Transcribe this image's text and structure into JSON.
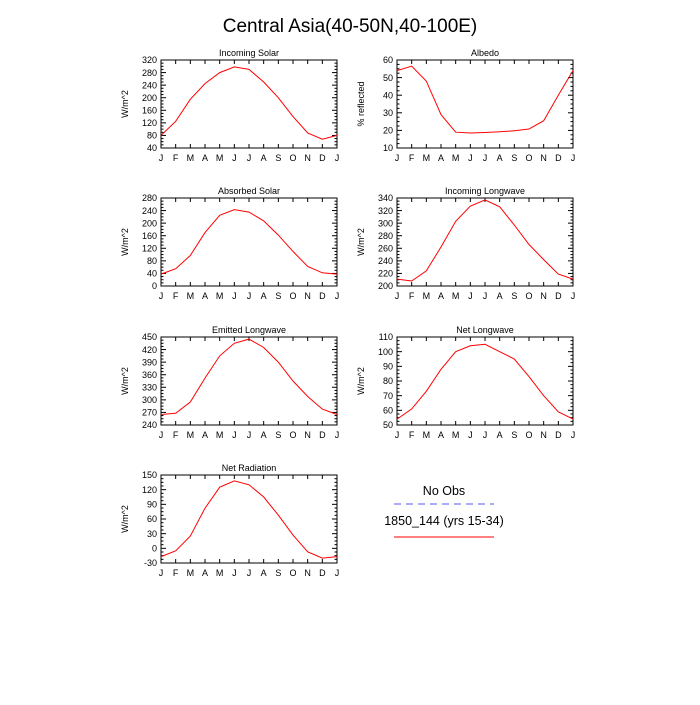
{
  "page_title": "Central Asia(40-50N,40-100E)",
  "months": [
    "J",
    "F",
    "M",
    "A",
    "M",
    "J",
    "J",
    "A",
    "S",
    "O",
    "N",
    "D",
    "J"
  ],
  "colors": {
    "model": "#ff0000",
    "obs": "#5555ee",
    "axis": "#000000"
  },
  "legend": {
    "obs_label": "No Obs",
    "model_label": "1850_144 (yrs 15-34)"
  },
  "chart_data": [
    {
      "type": "line",
      "title": "Incoming Solar",
      "ylabel": "W/m^2",
      "ylim": [
        40,
        320
      ],
      "yticks": [
        40,
        80,
        120,
        160,
        200,
        240,
        280,
        320
      ],
      "series": [
        {
          "name": "1850_144 (yrs 15-34)",
          "values": [
            80,
            125,
            195,
            245,
            280,
            298,
            290,
            250,
            200,
            140,
            88,
            68,
            80
          ]
        }
      ]
    },
    {
      "type": "line",
      "title": "Albedo",
      "ylabel": "% reflected",
      "ylim": [
        10,
        60
      ],
      "yticks": [
        10,
        20,
        30,
        40,
        50,
        60
      ],
      "series": [
        {
          "name": "1850_144 (yrs 15-34)",
          "values": [
            54,
            56.5,
            48,
            29,
            19,
            18.5,
            18.8,
            19.2,
            19.8,
            20.8,
            25.5,
            40,
            54
          ]
        }
      ]
    },
    {
      "type": "line",
      "title": "Absorbed Solar",
      "ylabel": "W/m^2",
      "ylim": [
        0,
        280
      ],
      "yticks": [
        0,
        40,
        80,
        120,
        160,
        200,
        240,
        280
      ],
      "series": [
        {
          "name": "1850_144 (yrs 15-34)",
          "values": [
            38,
            55,
            97,
            170,
            225,
            243,
            235,
            207,
            162,
            110,
            62,
            42,
            38
          ]
        }
      ]
    },
    {
      "type": "line",
      "title": "Incoming Longwave",
      "ylabel": "W/m^2",
      "ylim": [
        200,
        340
      ],
      "yticks": [
        200,
        220,
        240,
        260,
        280,
        300,
        320,
        340
      ],
      "series": [
        {
          "name": "1850_144 (yrs 15-34)",
          "values": [
            211,
            208,
            224,
            262,
            303,
            327,
            337,
            326,
            297,
            266,
            242,
            219,
            211
          ]
        }
      ]
    },
    {
      "type": "line",
      "title": "Emitted Longwave",
      "ylabel": "W/m^2",
      "ylim": [
        240,
        450
      ],
      "yticks": [
        240,
        270,
        300,
        330,
        360,
        390,
        420,
        450
      ],
      "series": [
        {
          "name": "1850_144 (yrs 15-34)",
          "values": [
            265,
            268,
            295,
            352,
            405,
            435,
            445,
            425,
            390,
            345,
            308,
            278,
            265
          ]
        }
      ]
    },
    {
      "type": "line",
      "title": "Net Longwave",
      "ylabel": "W/m^2",
      "ylim": [
        50,
        110
      ],
      "yticks": [
        50,
        60,
        70,
        80,
        90,
        100,
        110
      ],
      "series": [
        {
          "name": "1850_144 (yrs 15-34)",
          "values": [
            54,
            61,
            73,
            88,
            100,
            104,
            105,
            100,
            95,
            83,
            70,
            59,
            54
          ]
        }
      ]
    },
    {
      "type": "line",
      "title": "Net Radiation",
      "ylabel": "W/m^2",
      "ylim": [
        -30,
        150
      ],
      "yticks": [
        -30,
        0,
        30,
        60,
        90,
        120,
        150
      ],
      "series": [
        {
          "name": "1850_144 (yrs 15-34)",
          "values": [
            -17,
            -5,
            25,
            82,
            125,
            138,
            130,
            105,
            68,
            27,
            -7,
            -20,
            -17
          ]
        }
      ]
    }
  ]
}
